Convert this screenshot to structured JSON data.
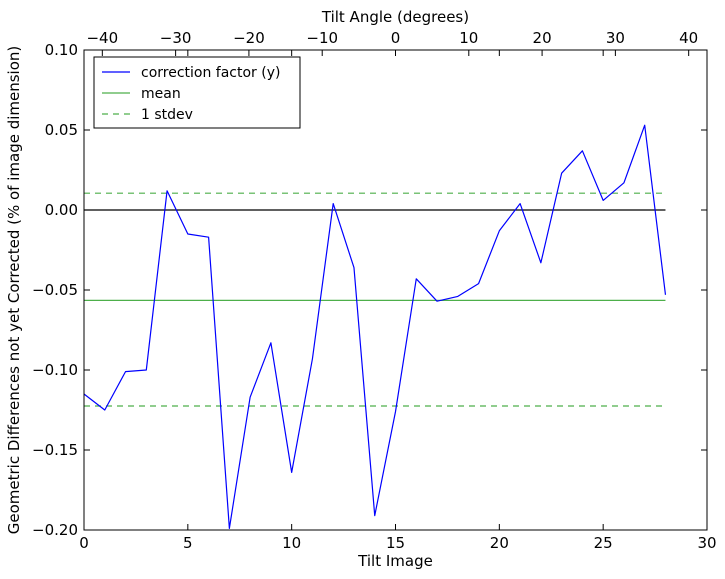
{
  "chart_data": {
    "type": "line",
    "title": "",
    "xlabel": "Tilt Image",
    "ylabel": "Geometric Differences not yet Corrected (% of image dimension)",
    "x2label": "Tilt Angle (degrees)",
    "xlim": [
      0,
      30
    ],
    "ylim": [
      -0.2,
      0.1
    ],
    "x2lim": [
      -42.5,
      42.5
    ],
    "xticks": [
      0,
      5,
      10,
      15,
      20,
      25,
      30
    ],
    "xtick_labels": [
      "0",
      "5",
      "10",
      "15",
      "20",
      "25",
      "30"
    ],
    "yticks": [
      -0.2,
      -0.15,
      -0.1,
      -0.05,
      0.0,
      0.05,
      0.1
    ],
    "ytick_labels": [
      "−0.20",
      "−0.15",
      "−0.10",
      "−0.05",
      "0.00",
      "0.05",
      "0.10"
    ],
    "x2ticks": [
      -40,
      -30,
      -20,
      -10,
      0,
      10,
      20,
      30,
      40
    ],
    "x2tick_labels": [
      "−40",
      "−30",
      "−20",
      "−10",
      "0",
      "10",
      "20",
      "30",
      "40"
    ],
    "grid": false,
    "legend_position": "top-left",
    "zero_line": {
      "y": 0.0,
      "x_range": [
        0,
        28
      ],
      "color": "#000000"
    },
    "series": [
      {
        "name": "correction factor (y)",
        "style": "solid",
        "color": "#0000ff",
        "x": [
          0,
          1,
          2,
          3,
          4,
          5,
          6,
          7,
          8,
          9,
          10,
          11,
          12,
          13,
          14,
          15,
          16,
          17,
          18,
          19,
          20,
          21,
          22,
          23,
          24,
          25,
          26,
          27,
          28
        ],
        "y": [
          -0.115,
          -0.125,
          -0.101,
          -0.1,
          0.012,
          -0.015,
          -0.017,
          -0.199,
          -0.117,
          -0.083,
          -0.164,
          -0.093,
          0.004,
          -0.036,
          -0.191,
          -0.126,
          -0.043,
          -0.057,
          -0.054,
          -0.046,
          -0.013,
          0.004,
          -0.033,
          0.023,
          0.037,
          0.006,
          0.017,
          0.053,
          -0.053
        ]
      },
      {
        "name": "mean",
        "style": "solid",
        "color": "#4daf4a",
        "x": [
          0,
          28
        ],
        "y": [
          -0.0565,
          -0.0565
        ]
      },
      {
        "name": "1 stdev",
        "style": "dashed",
        "color": "#4daf4a",
        "x": [
          0,
          28
        ],
        "y": [
          0.0105,
          0.0105
        ]
      },
      {
        "name": "",
        "style": "dashed",
        "color": "#4daf4a",
        "x": [
          0,
          28
        ],
        "y": [
          -0.1225,
          -0.1225
        ]
      }
    ],
    "legend": [
      "correction factor (y)",
      "mean",
      "1 stdev"
    ]
  }
}
